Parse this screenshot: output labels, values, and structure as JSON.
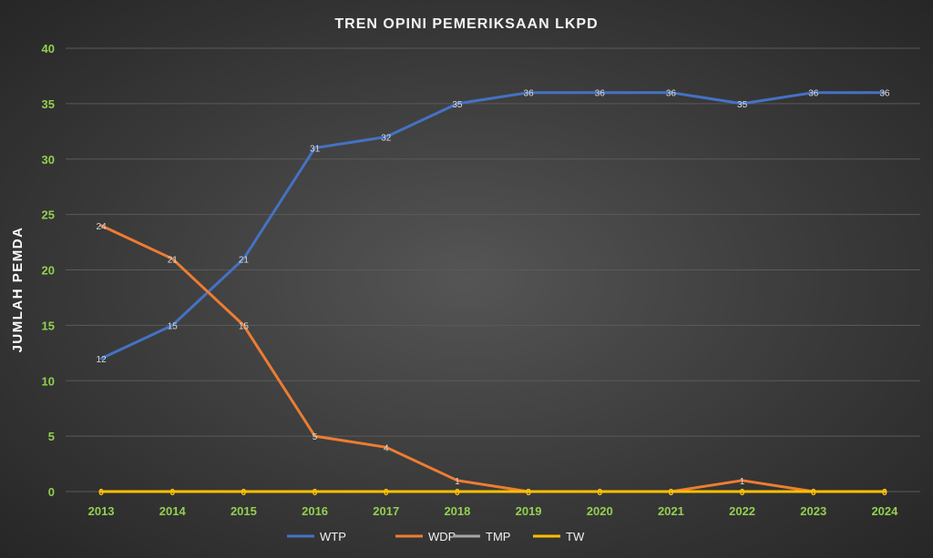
{
  "chart_data": {
    "type": "line",
    "title": "TREN OPINI PEMERIKSAAN LKPD",
    "ylabel": "JUMLAH PEMDA",
    "xlabel": "",
    "categories": [
      "2013",
      "2014",
      "2015",
      "2016",
      "2017",
      "2018",
      "2019",
      "2020",
      "2021",
      "2022",
      "2023",
      "2024"
    ],
    "ylim": [
      0,
      40
    ],
    "yticks": [
      0,
      5,
      10,
      15,
      20,
      25,
      30,
      35,
      40
    ],
    "grid": true,
    "legend_position": "bottom",
    "series": [
      {
        "name": "WTP",
        "color": "#4472c4",
        "values": [
          12,
          15,
          21,
          31,
          32,
          35,
          36,
          36,
          36,
          35,
          36,
          36
        ],
        "label_color": "#d9d9d9"
      },
      {
        "name": "WDP",
        "color": "#ed7d31",
        "values": [
          24,
          21,
          15,
          5,
          4,
          1,
          0,
          0,
          0,
          1,
          0,
          0
        ],
        "label_color": "#d9d9d9"
      },
      {
        "name": "TMP",
        "color": "#a5a5a5",
        "values": [
          0,
          0,
          0,
          0,
          0,
          0,
          0,
          0,
          0,
          0,
          0,
          0
        ],
        "label_color": "#d9d9d9"
      },
      {
        "name": "TW",
        "color": "#ffc000",
        "values": [
          0,
          0,
          0,
          0,
          0,
          0,
          0,
          0,
          0,
          0,
          0,
          0
        ],
        "label_color": "#ffc000"
      }
    ],
    "colors": {
      "tick_label": "#92d050",
      "title": "#f2f2f2",
      "grid": "#5a5a5a",
      "axis_title": "#ffffff",
      "legend_text": "#f2f2f2"
    }
  }
}
